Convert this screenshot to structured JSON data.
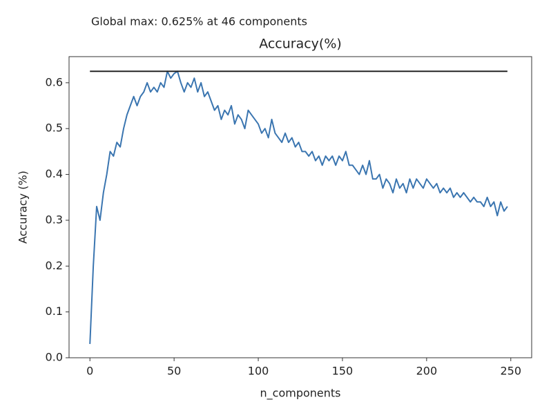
{
  "chart_data": {
    "type": "line",
    "annotation": "Global max: 0.625% at 46 components",
    "title": "Accuracy(%)",
    "x_label": "n_components",
    "y_label": "Accuracy (%)",
    "xlim": [
      -12.4,
      262.4
    ],
    "ylim": [
      0,
      0.657
    ],
    "xticks": [
      0,
      50,
      100,
      150,
      200,
      250
    ],
    "yticks": [
      {
        "value": 0,
        "label": "0.0"
      },
      0.1,
      0.2,
      0.3,
      0.4,
      0.5,
      0.6
    ],
    "grid": false,
    "legend": false,
    "series": [
      {
        "color": "#3a75b0",
        "x": [
          0,
          2,
          4,
          6,
          8,
          10,
          12,
          14,
          16,
          18,
          20,
          22,
          24,
          26,
          28,
          30,
          32,
          34,
          36,
          38,
          40,
          42,
          44,
          46,
          48,
          50,
          52,
          54,
          56,
          58,
          60,
          62,
          64,
          66,
          68,
          70,
          72,
          74,
          76,
          78,
          80,
          82,
          84,
          86,
          88,
          90,
          92,
          94,
          96,
          98,
          100,
          102,
          104,
          106,
          108,
          110,
          112,
          114,
          116,
          118,
          120,
          122,
          124,
          126,
          128,
          130,
          132,
          134,
          136,
          138,
          140,
          142,
          144,
          146,
          148,
          150,
          152,
          154,
          156,
          158,
          160,
          162,
          164,
          166,
          168,
          170,
          172,
          174,
          176,
          178,
          180,
          182,
          184,
          186,
          188,
          190,
          192,
          194,
          196,
          198,
          200,
          202,
          204,
          206,
          208,
          210,
          212,
          214,
          216,
          218,
          220,
          222,
          224,
          226,
          228,
          230,
          232,
          234,
          236,
          238,
          240,
          242,
          244,
          246,
          248
        ],
        "values": [
          0.03,
          0.2,
          0.33,
          0.3,
          0.36,
          0.4,
          0.45,
          0.44,
          0.47,
          0.46,
          0.5,
          0.53,
          0.55,
          0.57,
          0.55,
          0.57,
          0.58,
          0.6,
          0.58,
          0.59,
          0.58,
          0.6,
          0.59,
          0.625,
          0.61,
          0.62,
          0.625,
          0.6,
          0.58,
          0.6,
          0.59,
          0.61,
          0.58,
          0.6,
          0.57,
          0.58,
          0.56,
          0.54,
          0.55,
          0.52,
          0.54,
          0.53,
          0.55,
          0.51,
          0.53,
          0.52,
          0.5,
          0.54,
          0.53,
          0.52,
          0.51,
          0.49,
          0.5,
          0.48,
          0.52,
          0.49,
          0.48,
          0.47,
          0.49,
          0.47,
          0.48,
          0.46,
          0.47,
          0.45,
          0.45,
          0.44,
          0.45,
          0.43,
          0.44,
          0.42,
          0.44,
          0.43,
          0.44,
          0.42,
          0.44,
          0.43,
          0.45,
          0.42,
          0.42,
          0.41,
          0.4,
          0.42,
          0.4,
          0.43,
          0.39,
          0.39,
          0.4,
          0.37,
          0.39,
          0.38,
          0.36,
          0.39,
          0.37,
          0.38,
          0.36,
          0.39,
          0.37,
          0.39,
          0.38,
          0.37,
          0.39,
          0.38,
          0.37,
          0.38,
          0.36,
          0.37,
          0.36,
          0.37,
          0.35,
          0.36,
          0.35,
          0.36,
          0.35,
          0.34,
          0.35,
          0.34,
          0.34,
          0.33,
          0.35,
          0.33,
          0.34,
          0.31,
          0.34,
          0.32,
          0.33
        ]
      },
      {
        "color": "#222222",
        "x": [
          0,
          248
        ],
        "values": [
          0.625,
          0.625
        ]
      }
    ]
  }
}
